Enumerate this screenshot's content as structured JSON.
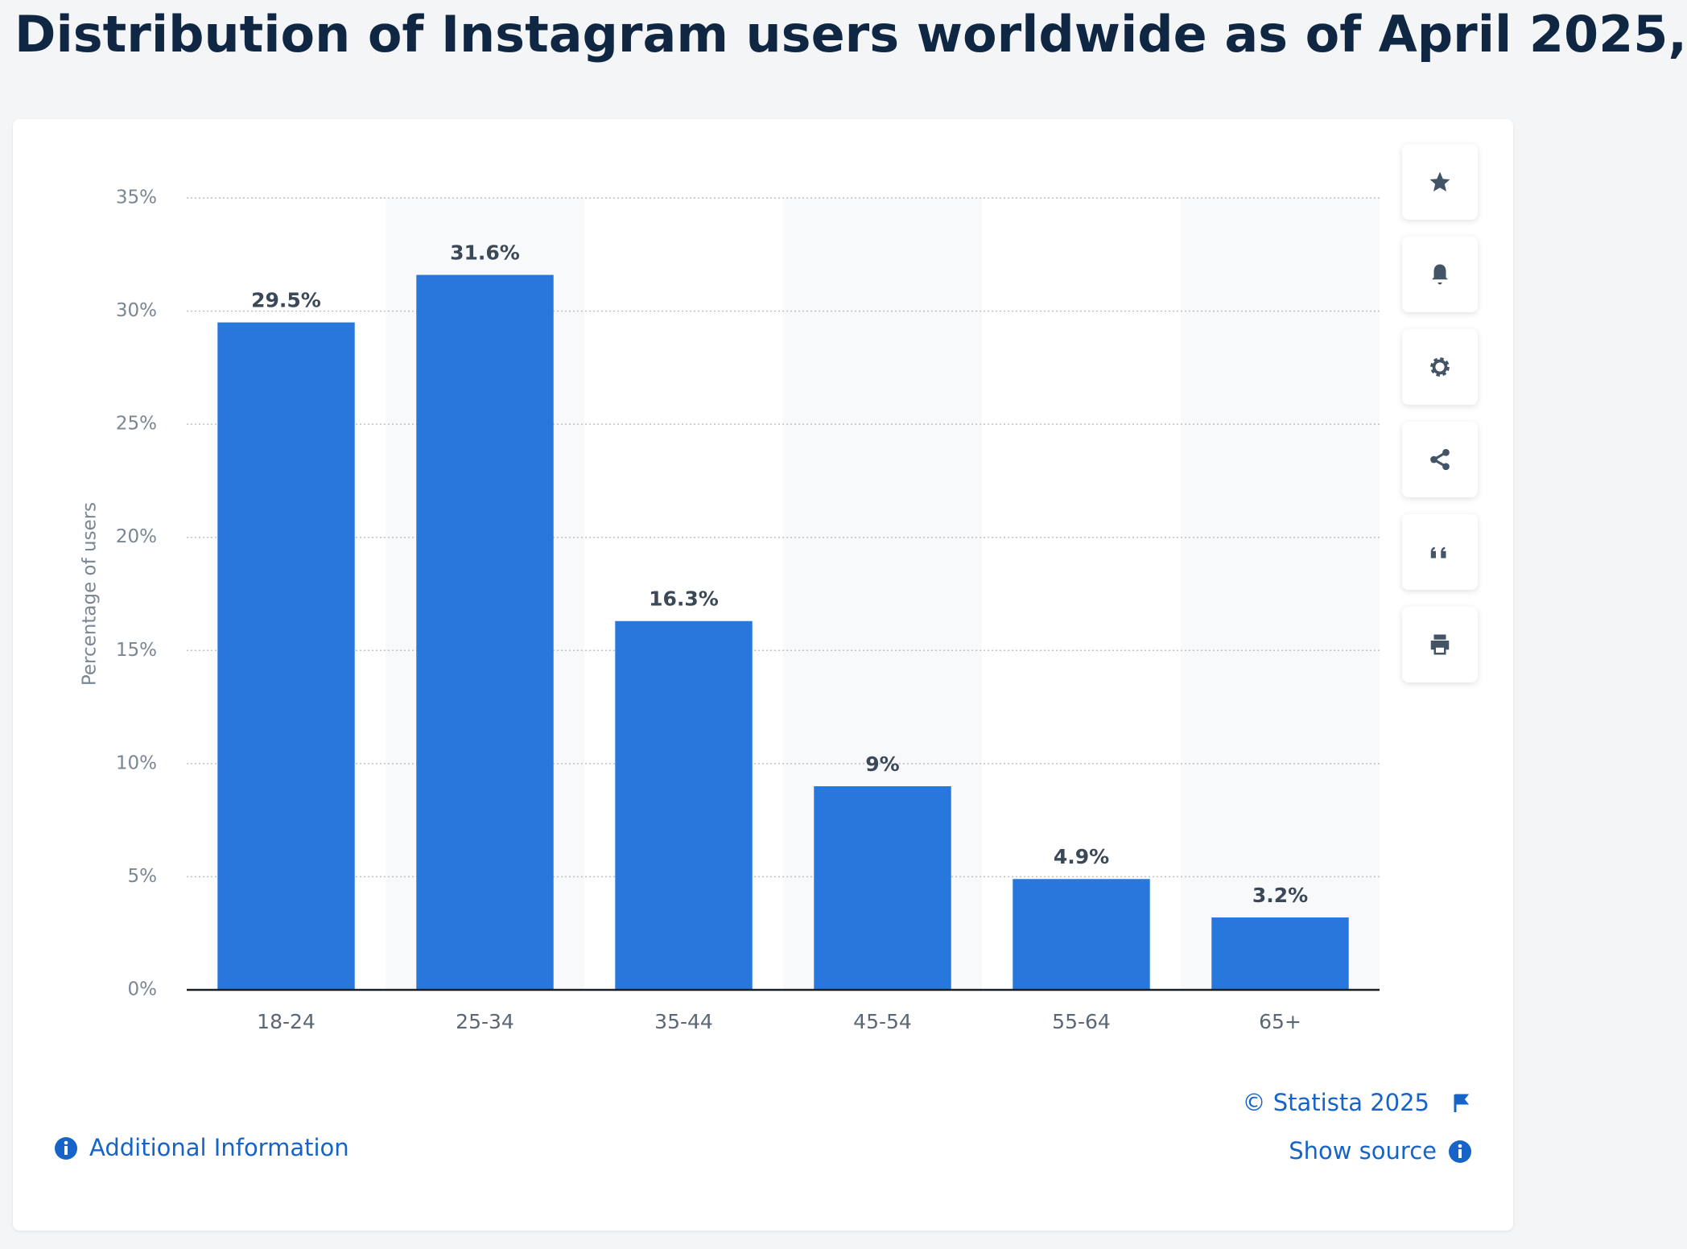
{
  "chart_data": {
    "type": "bar",
    "title": "Distribution of Instagram users worldwide as of April 2025,",
    "y_label": "Percentage of users",
    "categories": [
      "18-24",
      "25-34",
      "35-44",
      "45-54",
      "55-64",
      "65+"
    ],
    "values": [
      29.5,
      31.6,
      16.3,
      9,
      4.9,
      3.2
    ],
    "value_labels": [
      "29.5%",
      "31.6%",
      "16.3%",
      "9%",
      "4.9%",
      "3.2%"
    ],
    "color": "#2877dc",
    "ylim": [
      0,
      35
    ],
    "yticks": [
      {
        "value": 0,
        "label": "0%"
      },
      {
        "value": 5,
        "label": "5%"
      },
      {
        "value": 10,
        "label": "10%"
      },
      {
        "value": 15,
        "label": "15%"
      },
      {
        "value": 20,
        "label": "20%"
      },
      {
        "value": 25,
        "label": "25%"
      },
      {
        "value": 30,
        "label": "30%"
      },
      {
        "value": 35,
        "label": "35%"
      }
    ],
    "grid": true
  },
  "footer": {
    "copyright": "© Statista 2025",
    "show_source": "Show source",
    "additional_info": "Additional Information"
  }
}
